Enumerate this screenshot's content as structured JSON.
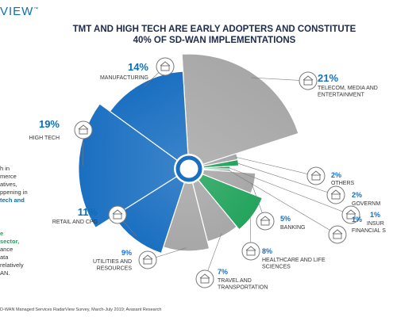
{
  "brand": "VIEW",
  "trademark": "™",
  "title_lines": [
    "TMT AND HIGH TECH ARE EARLY ADOPTERS AND CONSTITUTE",
    "40% OF SD-WAN IMPLEMENTATIONS"
  ],
  "side_text": [
    "h in",
    "merce",
    "atives,",
    "ppening in",
    "tech and",
    "e",
    "sector,",
    "ance",
    "ata",
    "relatively",
    "AN."
  ],
  "footer": "D-WAN Managed Services RadarView Survey, March-July 2019; Avasant Research",
  "colors": {
    "blue": "#1a6fc1",
    "gray": "#a7a7a7",
    "green": "#23a45d",
    "navy": "#1d2a4d",
    "accent_blue": "#0b6fb8"
  },
  "chart_data": {
    "type": "pie",
    "variant": "polar-area",
    "unit": "%",
    "slices": [
      {
        "label": "TELECOM, MEDIA AND ENTERTAINMENT",
        "value": 21,
        "color": "gray",
        "icon": "satellite-dish-icon"
      },
      {
        "label": "OTHERS",
        "value": 2,
        "color": "gray",
        "icon": "dots-icon"
      },
      {
        "label": "GOVERNM",
        "value": 2,
        "color": "green",
        "icon": "government-icon"
      },
      {
        "label": "INSUR",
        "value": 1,
        "color": "green",
        "icon": "umbrella-icon"
      },
      {
        "label": "FINANCIAL S",
        "value": 1,
        "color": "gray",
        "icon": "money-icon"
      },
      {
        "label": "BANKING",
        "value": 5,
        "color": "gray",
        "icon": "bank-icon"
      },
      {
        "label": "HEALTHCARE AND LIFE SCIENCES",
        "value": 8,
        "color": "green",
        "icon": "medical-icon"
      },
      {
        "label": "TRAVEL AND TRANSPORTATION",
        "value": 7,
        "color": "gray",
        "icon": "airplane-icon"
      },
      {
        "label": "UTILITIES AND RESOURCES",
        "value": 9,
        "color": "gray",
        "icon": "lightbulb-icon"
      },
      {
        "label": "RETAIL AND CPG",
        "value": 11,
        "color": "blue",
        "icon": "shopping-cart-icon"
      },
      {
        "label": "HIGH TECH",
        "value": 19,
        "color": "blue",
        "icon": "robot-arm-icon"
      },
      {
        "label": "MANUFACTURING",
        "value": 14,
        "color": "blue",
        "icon": "factory-icon"
      }
    ]
  }
}
